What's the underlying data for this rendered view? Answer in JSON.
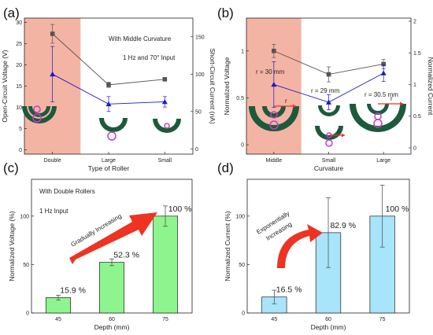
{
  "panels": {
    "a": {
      "label": "(a)",
      "annotations": [
        "With Middle Curvature",
        "1 Hz and 70° Input"
      ]
    },
    "b": {
      "label": "(b)",
      "annotations": [
        "r = 30 mm",
        "r = 29 mm",
        "r = 30.5 mm",
        "r",
        "r",
        "r"
      ]
    },
    "c": {
      "label": "(c)",
      "annotations": [
        "With Double Rollers",
        "1 Hz Input",
        "Gradually Increasing"
      ]
    },
    "d": {
      "label": "(d)",
      "annotations": [
        "Exponentially",
        "Increasing"
      ]
    }
  },
  "colors": {
    "voltage": "#555555",
    "current": "#1a1acc",
    "shade": "#f4b4a4",
    "bar_green": "#8ef58e",
    "bar_blue": "#a8e4fa",
    "arrow": "#ee3322",
    "roller": "#1c5a3c",
    "ball": "#c040c0"
  },
  "chart_data": [
    {
      "type": "line",
      "panel": "a",
      "categories": [
        "Double",
        "Large",
        "Small"
      ],
      "xlabel": "Type of Roller",
      "ylabel": "Open-Circuit Voltage (V)",
      "y2label": "Short-Circuit Current (nA)",
      "ylim": [
        -1,
        31
      ],
      "y2lim": [
        -7,
        175
      ],
      "yticks": [
        0,
        5,
        10,
        15,
        20,
        25,
        30
      ],
      "y2ticks": [
        0,
        50,
        100,
        150
      ],
      "shaded_category": "Double",
      "series": [
        {
          "axis": "left",
          "marker": "square",
          "values": [
            27.3,
            15.3,
            16.6
          ],
          "err": [
            2.2,
            0.6,
            0.4
          ]
        },
        {
          "axis": "right",
          "marker": "triangle",
          "values": [
            100,
            60,
            63
          ],
          "err": [
            37,
            10,
            7
          ]
        }
      ]
    },
    {
      "type": "line",
      "panel": "b",
      "categories": [
        "Middle",
        "Small",
        "Large"
      ],
      "xlabel": "Curvature",
      "ylabel": "Normalized Voltage",
      "y2label": "Normalized Current",
      "ylim": [
        -0.1,
        1.35
      ],
      "y2lim": [
        -0.1,
        2.05
      ],
      "yticks": [
        0.0,
        0.5,
        1.0
      ],
      "y2ticks": [
        0.0,
        0.5,
        1.0,
        1.5,
        2.0
      ],
      "shaded_category": "Middle",
      "series": [
        {
          "axis": "left",
          "marker": "square",
          "values": [
            1.0,
            0.75,
            0.86
          ],
          "err": [
            0.07,
            0.08,
            0.05
          ]
        },
        {
          "axis": "right",
          "marker": "triangle",
          "values": [
            1.0,
            0.72,
            1.18
          ],
          "err": [
            0.36,
            0.12,
            0.13
          ]
        }
      ]
    },
    {
      "type": "bar",
      "panel": "c",
      "categories": [
        "45",
        "60",
        "75"
      ],
      "values": [
        15.9,
        52.3,
        100
      ],
      "err": [
        2.5,
        3.5,
        10.5
      ],
      "data_labels": [
        "15.9 %",
        "52.3 %",
        "100 %"
      ],
      "xlabel": "Depth (mm)",
      "ylabel": "Normalized Voltage (%)",
      "ylim": [
        0,
        138
      ],
      "yticks": [
        0,
        50,
        100
      ]
    },
    {
      "type": "bar",
      "panel": "d",
      "categories": [
        "45",
        "60",
        "75"
      ],
      "values": [
        16.5,
        82.9,
        100
      ],
      "err": [
        7,
        36,
        32
      ],
      "data_labels": [
        "16.5 %",
        "82.9 %",
        "100 %"
      ],
      "xlabel": "Depth (mm)",
      "ylabel": "Normalized Current (%)",
      "ylim": [
        0,
        138
      ],
      "yticks": [
        0,
        50,
        100
      ]
    }
  ]
}
